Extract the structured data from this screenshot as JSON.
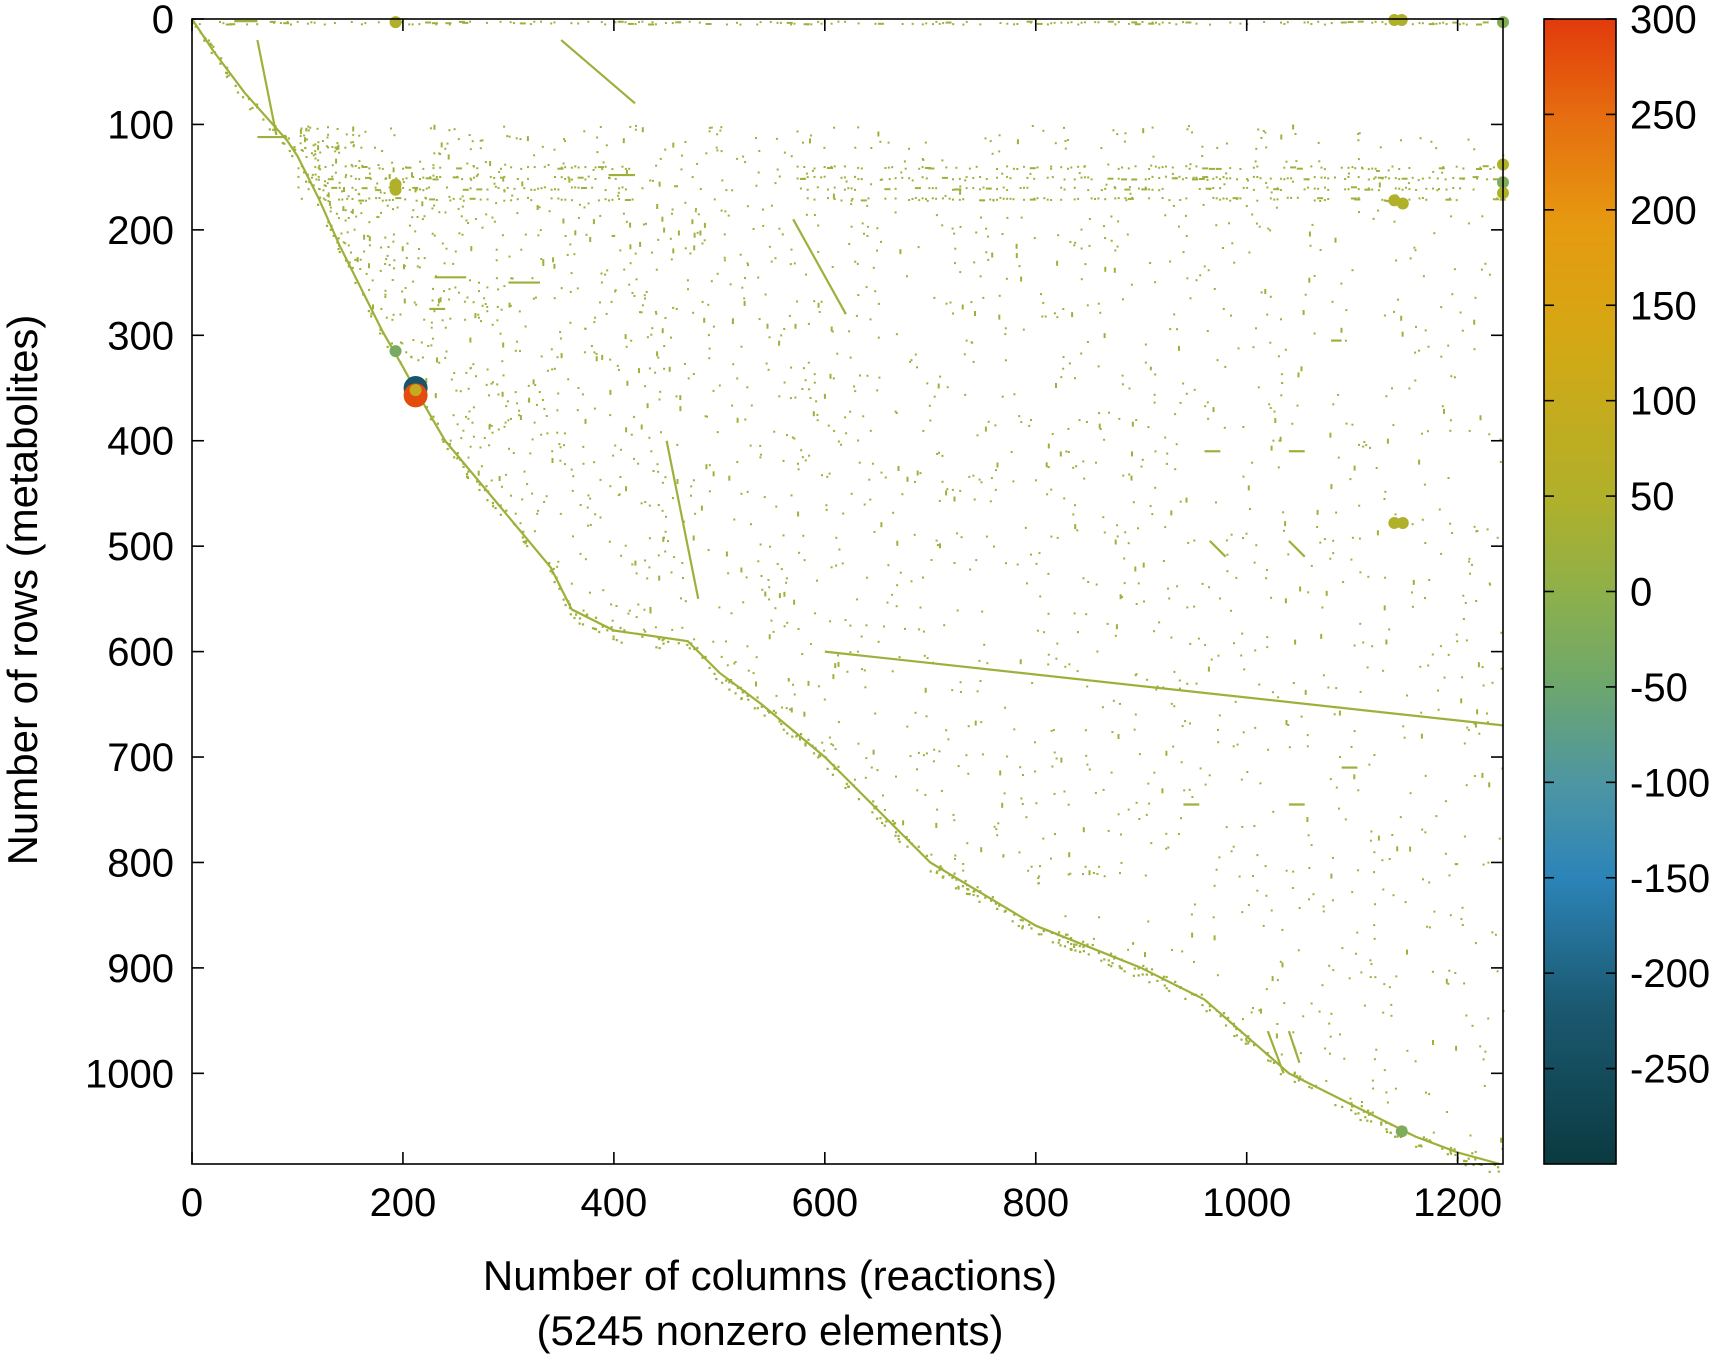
{
  "chart_data": {
    "type": "scatter",
    "title": "",
    "xlabel": "Number of columns (reactions)",
    "xlabel_sub": "(5245 nonzero elements)",
    "ylabel": "Number of rows (metabolites)",
    "xlim": [
      0,
      1243
    ],
    "ylim": [
      1086,
      0
    ],
    "y_inverted": true,
    "x_ticks": [
      0,
      200,
      400,
      600,
      800,
      1000,
      1200
    ],
    "y_ticks": [
      0,
      100,
      200,
      300,
      400,
      500,
      600,
      700,
      800,
      900,
      1000
    ],
    "grid": false,
    "colorbar": {
      "min": -300,
      "max": 300,
      "ticks": [
        300,
        250,
        200,
        150,
        100,
        50,
        0,
        -50,
        -100,
        -150,
        -200,
        -250
      ],
      "colors": [
        "#0b3a40",
        "#1b5a72",
        "#2c84b8",
        "#4c95a4",
        "#6ea76c",
        "#8eb04a",
        "#b0b02a",
        "#d4a814",
        "#e69a10",
        "#e67010",
        "#e23a0c"
      ]
    },
    "diagonal_profile": {
      "x": [
        0,
        20,
        50,
        90,
        100,
        120,
        140,
        160,
        180,
        200,
        212,
        240,
        290,
        340,
        360,
        400,
        470,
        500,
        540,
        600,
        700,
        750,
        800,
        850,
        900,
        960,
        1000,
        1040,
        1080,
        1120,
        1140,
        1160,
        1200,
        1240
      ],
      "y": [
        0,
        30,
        70,
        115,
        130,
        170,
        215,
        255,
        295,
        330,
        352,
        400,
        460,
        520,
        560,
        580,
        590,
        620,
        650,
        700,
        800,
        830,
        860,
        880,
        900,
        930,
        965,
        1000,
        1020,
        1040,
        1050,
        1060,
        1075,
        1086
      ]
    },
    "horizontal_bands": [
      {
        "y": 3,
        "x_start": 0,
        "x_end": 1243
      },
      {
        "y": 140,
        "x_start": 100,
        "x_end": 420
      },
      {
        "y": 150,
        "x_start": 100,
        "x_end": 420
      },
      {
        "y": 160,
        "x_start": 100,
        "x_end": 420
      },
      {
        "y": 170,
        "x_start": 100,
        "x_end": 420
      },
      {
        "y": 140,
        "x_start": 570,
        "x_end": 1243
      },
      {
        "y": 150,
        "x_start": 570,
        "x_end": 1243
      },
      {
        "y": 160,
        "x_start": 570,
        "x_end": 1243
      },
      {
        "y": 170,
        "x_start": 570,
        "x_end": 1243
      }
    ],
    "segments": [
      {
        "x1": 40,
        "y1": 2,
        "x2": 62,
        "y2": 2
      },
      {
        "x1": 62,
        "y1": 20,
        "x2": 80,
        "y2": 110
      },
      {
        "x1": 350,
        "y1": 20,
        "x2": 420,
        "y2": 80
      },
      {
        "x1": 62,
        "y1": 112,
        "x2": 90,
        "y2": 112
      },
      {
        "x1": 395,
        "y1": 148,
        "x2": 420,
        "y2": 148
      },
      {
        "x1": 230,
        "y1": 245,
        "x2": 260,
        "y2": 245
      },
      {
        "x1": 300,
        "y1": 250,
        "x2": 330,
        "y2": 250
      },
      {
        "x1": 225,
        "y1": 275,
        "x2": 240,
        "y2": 275
      },
      {
        "x1": 1130,
        "y1": 172,
        "x2": 1150,
        "y2": 176
      },
      {
        "x1": 1140,
        "y1": 478,
        "x2": 1150,
        "y2": 478
      },
      {
        "x1": 960,
        "y1": 410,
        "x2": 975,
        "y2": 410
      },
      {
        "x1": 1040,
        "y1": 410,
        "x2": 1055,
        "y2": 410
      },
      {
        "x1": 965,
        "y1": 495,
        "x2": 980,
        "y2": 510
      },
      {
        "x1": 1040,
        "y1": 495,
        "x2": 1055,
        "y2": 510
      },
      {
        "x1": 1020,
        "y1": 960,
        "x2": 1035,
        "y2": 1000
      },
      {
        "x1": 1040,
        "y1": 960,
        "x2": 1050,
        "y2": 990
      },
      {
        "x1": 450,
        "y1": 400,
        "x2": 480,
        "y2": 550
      },
      {
        "x1": 570,
        "y1": 190,
        "x2": 620,
        "y2": 280
      },
      {
        "x1": 600,
        "y1": 600,
        "x2": 1243,
        "y2": 670
      },
      {
        "x1": 1090,
        "y1": 710,
        "x2": 1105,
        "y2": 710
      },
      {
        "x1": 1040,
        "y1": 745,
        "x2": 1055,
        "y2": 745
      },
      {
        "x1": 940,
        "y1": 745,
        "x2": 955,
        "y2": 745
      },
      {
        "x1": 1080,
        "y1": 305,
        "x2": 1090,
        "y2": 305
      },
      {
        "x1": 190,
        "y1": 3,
        "x2": 200,
        "y2": 3
      }
    ],
    "highlighted_points": [
      {
        "x": 193,
        "y": 3,
        "value": 60
      },
      {
        "x": 193,
        "y": 157,
        "value": 60
      },
      {
        "x": 193,
        "y": 162,
        "value": 60
      },
      {
        "x": 193,
        "y": 315,
        "value": -40
      },
      {
        "x": 212,
        "y": 350,
        "value": -250
      },
      {
        "x": 212,
        "y": 357,
        "value": 280
      },
      {
        "x": 212,
        "y": 352,
        "value": 90
      },
      {
        "x": 1140,
        "y": 1,
        "value": 60
      },
      {
        "x": 1147,
        "y": 1,
        "value": 60
      },
      {
        "x": 1243,
        "y": 3,
        "value": -20
      },
      {
        "x": 1243,
        "y": 138,
        "value": 60
      },
      {
        "x": 1243,
        "y": 155,
        "value": -30
      },
      {
        "x": 1243,
        "y": 165,
        "value": 60
      },
      {
        "x": 1140,
        "y": 172,
        "value": 60
      },
      {
        "x": 1148,
        "y": 175,
        "value": 60
      },
      {
        "x": 1140,
        "y": 478,
        "value": 60
      },
      {
        "x": 1148,
        "y": 478,
        "value": 60
      },
      {
        "x": 1147,
        "y": 1055,
        "value": -30
      }
    ],
    "point_value_default": 30
  }
}
